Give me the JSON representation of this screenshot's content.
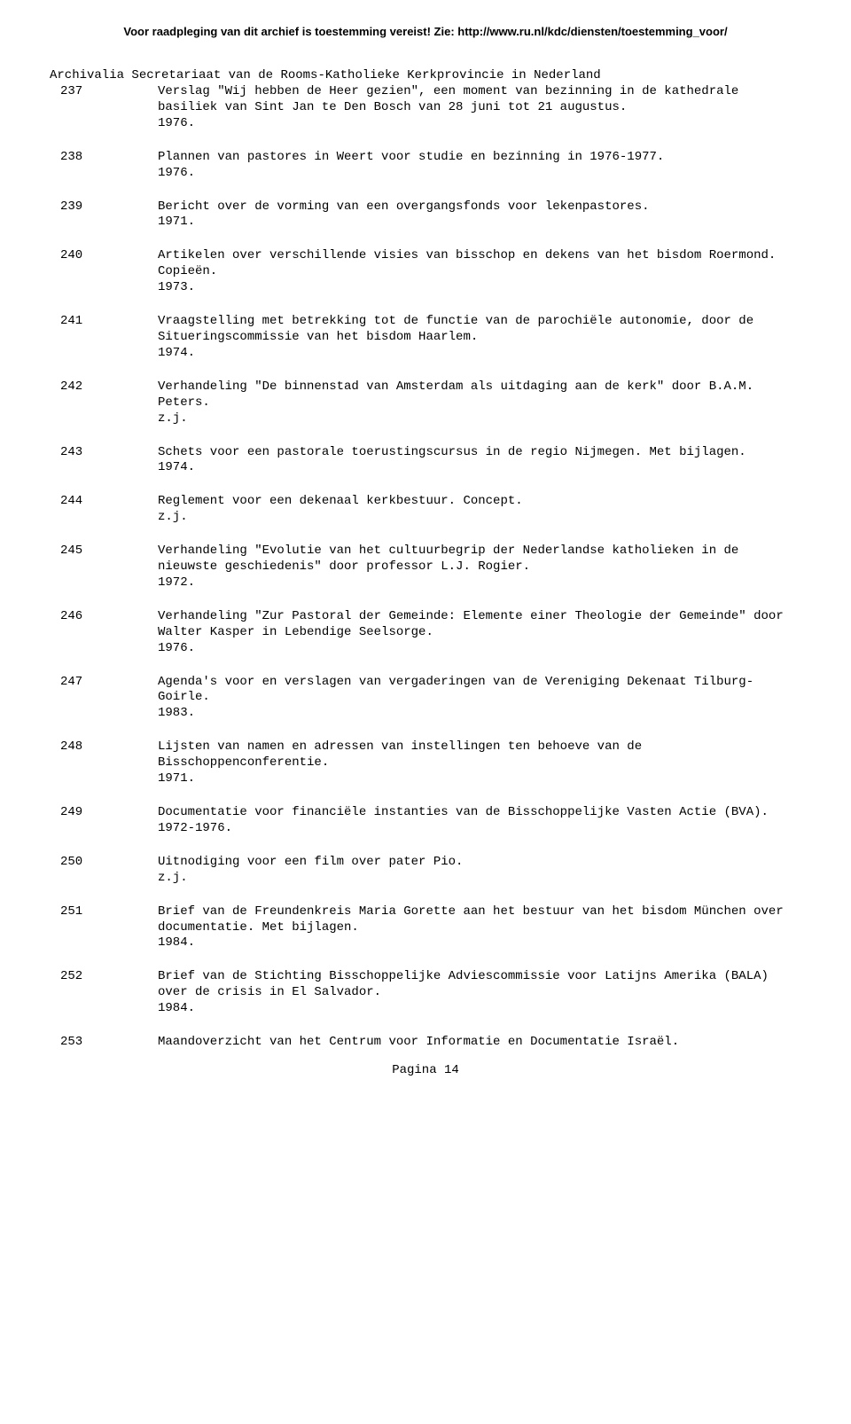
{
  "header": "Voor raadpleging van dit archief is toestemming vereist! Zie: http://www.ru.nl/kdc/diensten/toestemming_voor/",
  "page_title": "Archivalia Secretariaat van de Rooms-Katholieke Kerkprovincie in Nederland",
  "entries": [
    {
      "num": "237",
      "text": "Verslag \"Wij hebben de Heer gezien\", een moment van bezinning in de kathedrale basiliek van Sint Jan te Den Bosch van 28 juni tot 21 augustus.",
      "date": "1976."
    },
    {
      "num": "238",
      "text": "Plannen van pastores in Weert voor studie en bezinning in 1976-1977.",
      "date": "1976."
    },
    {
      "num": "239",
      "text": "Bericht over de vorming van een overgangsfonds voor lekenpastores.",
      "date": "1971."
    },
    {
      "num": "240",
      "text": "Artikelen over verschillende visies van bisschop en dekens van het bisdom Roermond. Copieën.",
      "date": "1973."
    },
    {
      "num": "241",
      "text": "Vraagstelling met betrekking tot de functie van de parochiële autonomie, door de Situeringscommissie van het bisdom Haarlem.",
      "date": "1974."
    },
    {
      "num": "242",
      "text": "Verhandeling \"De binnenstad van Amsterdam als uitdaging aan de kerk\" door B.A.M. Peters.",
      "date": "z.j."
    },
    {
      "num": "243",
      "text": "Schets voor een pastorale toerustingscursus in de regio Nijmegen. Met bijlagen.",
      "date": "1974."
    },
    {
      "num": "244",
      "text": "Reglement voor een dekenaal kerkbestuur. Concept.",
      "date": "z.j."
    },
    {
      "num": "245",
      "text": "Verhandeling \"Evolutie van het cultuurbegrip der Nederlandse katholieken in de nieuwste geschiedenis\" door professor L.J. Rogier.",
      "date": "1972."
    },
    {
      "num": "246",
      "text": "Verhandeling \"Zur Pastoral der Gemeinde: Elemente einer Theologie der Gemeinde\" door Walter Kasper in Lebendige Seelsorge.",
      "date": "1976."
    },
    {
      "num": "247",
      "text": "Agenda's voor en verslagen van vergaderingen van de Vereniging Dekenaat Tilburg-Goirle.",
      "date": "1983."
    },
    {
      "num": "248",
      "text": "Lijsten van namen en adressen van instellingen ten behoeve van de Bisschoppenconferentie.",
      "date": "1971."
    },
    {
      "num": "249",
      "text": "Documentatie voor financiële instanties van de Bisschoppelijke Vasten Actie (BVA).",
      "date": "1972-1976."
    },
    {
      "num": "250",
      "text": "Uitnodiging voor een film over pater Pio.",
      "date": "z.j."
    },
    {
      "num": "251",
      "text": "Brief van de Freundenkreis Maria Gorette aan het bestuur van het bisdom München over documentatie. Met bijlagen.",
      "date": "1984."
    },
    {
      "num": "252",
      "text": "Brief van de Stichting Bisschoppelijke Adviescommissie voor Latijns Amerika (BALA) over de crisis in El Salvador.",
      "date": "1984."
    },
    {
      "num": "253",
      "text": "Maandoverzicht van het Centrum voor Informatie en Documentatie Israël.",
      "date": ""
    }
  ],
  "footer": "Pagina 14"
}
